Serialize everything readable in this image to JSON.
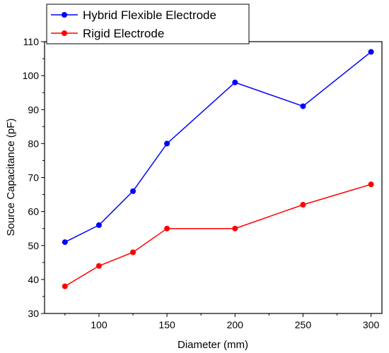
{
  "chart_data": {
    "type": "line",
    "title": "",
    "xlabel": "Diameter (mm)",
    "ylabel": "Source Capacitance (pF)",
    "xlim": [
      60,
      308
    ],
    "ylim": [
      30,
      110
    ],
    "xticks": [
      100,
      150,
      200,
      250,
      300
    ],
    "yticks": [
      30,
      40,
      50,
      60,
      70,
      80,
      90,
      100,
      110
    ],
    "x": [
      75,
      100,
      125,
      150,
      200,
      250,
      300
    ],
    "grid": false,
    "legend_position": "top-left, above plot area",
    "series": [
      {
        "name": "Hybrid Flexible Electrode",
        "color": "#0000ff",
        "values": [
          51,
          56,
          66,
          80,
          98,
          91,
          107
        ]
      },
      {
        "name": "Rigid Electrode",
        "color": "#ff0000",
        "values": [
          38,
          44,
          48,
          55,
          55,
          62,
          68
        ]
      }
    ]
  }
}
